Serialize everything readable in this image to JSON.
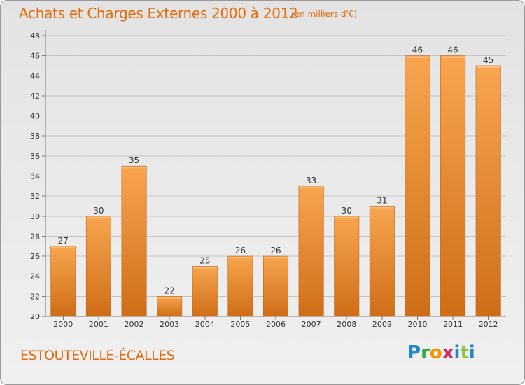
{
  "header": {
    "title": "Achats et Charges Externes 2000 à 2012",
    "subtitle": "(en milliers d'€)"
  },
  "footer": {
    "town": "ESTOUTEVILLE-ÉCALLES",
    "logo": [
      "P",
      "r",
      "o",
      "x",
      "i",
      "t",
      "i"
    ]
  },
  "colors": {
    "title": "#e36c0a",
    "bar_light": "#f6a04a",
    "bar_dark": "#d2711a"
  },
  "chart_data": {
    "type": "bar",
    "title": "Achats et Charges Externes 2000 à 2012",
    "subtitle": "(en milliers d'€)",
    "categories": [
      "2000",
      "2001",
      "2002",
      "2003",
      "2004",
      "2005",
      "2006",
      "2007",
      "2008",
      "2009",
      "2010",
      "2011",
      "2012"
    ],
    "values": [
      27,
      30,
      35,
      22,
      25,
      26,
      26,
      33,
      30,
      31,
      46,
      46,
      45
    ],
    "ylim": [
      20,
      48
    ],
    "yticks": [
      20,
      22,
      24,
      26,
      28,
      30,
      32,
      34,
      36,
      38,
      40,
      42,
      44,
      46,
      48
    ],
    "grid": true,
    "legend": "none"
  }
}
